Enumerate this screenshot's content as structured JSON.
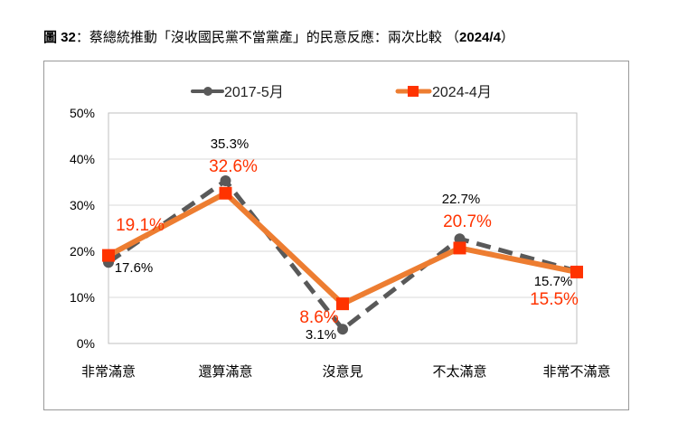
{
  "chart_data": {
    "type": "line",
    "title": "圖 32：蔡總統推動「沒收國民黨不當黨產」的民意反應：兩次比較 （2024/4）",
    "title_parts": {
      "prefix": "圖 32",
      "main": "：蔡總統推動「沒收國民黨不當黨產」的民意反應：兩次比較 （",
      "year": "2024/4",
      "suffix": "）"
    },
    "categories": [
      "非常滿意",
      "還算滿意",
      "沒意見",
      "不太滿意",
      "非常不滿意"
    ],
    "series": [
      {
        "name": "2017-5月",
        "values": [
          17.6,
          35.3,
          3.1,
          22.7,
          15.7
        ],
        "labels": [
          "17.6%",
          "35.3%",
          "3.1%",
          "22.7%",
          "15.7%"
        ],
        "color": "#595959",
        "style": "dashed",
        "marker": "circle"
      },
      {
        "name": "2024-4月",
        "values": [
          19.1,
          32.6,
          8.6,
          20.7,
          15.5
        ],
        "labels": [
          "19.1%",
          "32.6%",
          "8.6%",
          "20.7%",
          "15.5%"
        ],
        "color": "#ED7D31",
        "marker_color": "#FF3300",
        "style": "solid",
        "marker": "square"
      }
    ],
    "yticks": [
      "0%",
      "10%",
      "20%",
      "30%",
      "40%",
      "50%"
    ],
    "ylim": [
      0,
      50
    ],
    "grid": true,
    "legend": "top"
  }
}
